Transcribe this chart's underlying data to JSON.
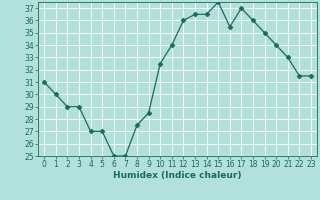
{
  "x": [
    0,
    1,
    2,
    3,
    4,
    5,
    6,
    7,
    8,
    9,
    10,
    11,
    12,
    13,
    14,
    15,
    16,
    17,
    18,
    19,
    20,
    21,
    22,
    23
  ],
  "y": [
    31,
    30,
    29,
    29,
    27,
    27,
    25,
    25,
    27.5,
    28.5,
    32.5,
    34,
    36,
    36.5,
    36.5,
    37.5,
    35.5,
    37,
    36,
    35,
    34,
    33,
    31.5,
    31.5
  ],
  "line_color": "#1a6b5e",
  "marker": "D",
  "marker_size": 2.5,
  "bg_color": "#b2e0da",
  "grid_color": "#ffffff",
  "xlabel": "Humidex (Indice chaleur)",
  "xlim": [
    -0.5,
    23.5
  ],
  "ylim": [
    25,
    37.5
  ],
  "yticks": [
    25,
    26,
    27,
    28,
    29,
    30,
    31,
    32,
    33,
    34,
    35,
    36,
    37
  ],
  "xticks": [
    0,
    1,
    2,
    3,
    4,
    5,
    6,
    7,
    8,
    9,
    10,
    11,
    12,
    13,
    14,
    15,
    16,
    17,
    18,
    19,
    20,
    21,
    22,
    23
  ],
  "tick_fontsize": 5.5,
  "xlabel_fontsize": 6.5
}
